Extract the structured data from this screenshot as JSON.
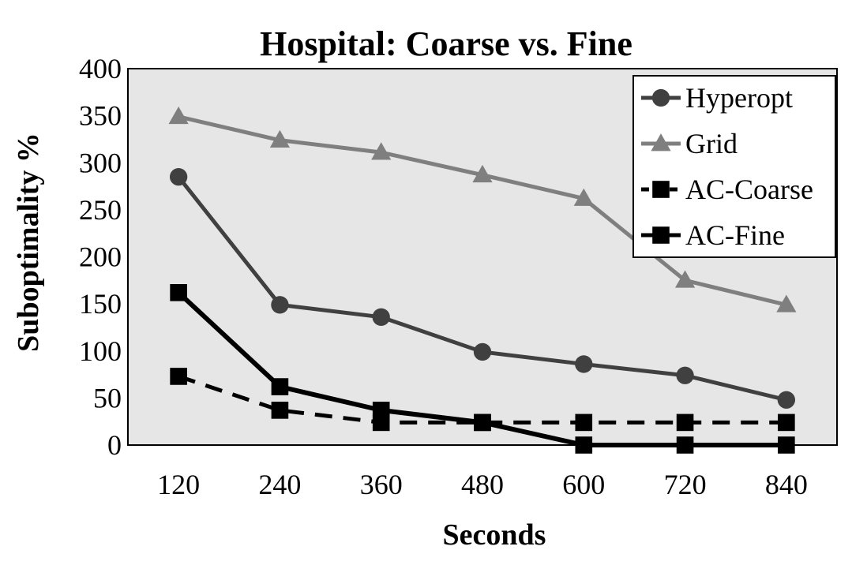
{
  "chart_data": {
    "type": "line",
    "title": "Hospital: Coarse vs. Fine",
    "xlabel": "Seconds",
    "ylabel": "Suboptimality %",
    "categories": [
      "120",
      "240",
      "360",
      "480",
      "600",
      "720",
      "840"
    ],
    "ylim": [
      0,
      400
    ],
    "yticks": [
      "0",
      "50",
      "100",
      "150",
      "200",
      "250",
      "300",
      "350",
      "400"
    ],
    "legend_position": "top-right",
    "series": [
      {
        "name": "Hyperopt",
        "values": [
          285,
          149,
          136,
          99,
          86,
          74,
          48
        ],
        "color": "#404040",
        "marker": "circle",
        "dash": "solid"
      },
      {
        "name": "Grid",
        "values": [
          349,
          324,
          311,
          287,
          262,
          175,
          149
        ],
        "color": "#7f7f7f",
        "marker": "triangle",
        "dash": "solid"
      },
      {
        "name": "AC-Coarse",
        "values": [
          73,
          37,
          24,
          24,
          24,
          24,
          24
        ],
        "color": "#000000",
        "marker": "square",
        "dash": "dashed"
      },
      {
        "name": "AC-Fine",
        "values": [
          162,
          62,
          37,
          24,
          0,
          0,
          0
        ],
        "color": "#000000",
        "marker": "square",
        "dash": "solid"
      }
    ]
  }
}
